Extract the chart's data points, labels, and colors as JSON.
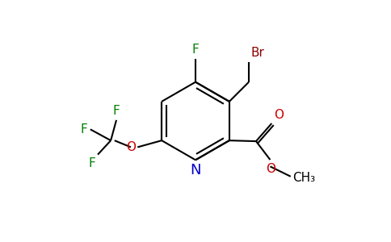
{
  "bg_color": "#ffffff",
  "ring_color": "#000000",
  "N_color": "#0000cc",
  "O_color": "#cc0000",
  "F_color": "#008000",
  "Br_color": "#8b0000",
  "bond_lw": 1.5,
  "font_size": 11,
  "figsize": [
    4.84,
    3.0
  ],
  "dpi": 100,
  "xlim": [
    -3.5,
    4.5
  ],
  "ylim": [
    -3.2,
    3.2
  ]
}
